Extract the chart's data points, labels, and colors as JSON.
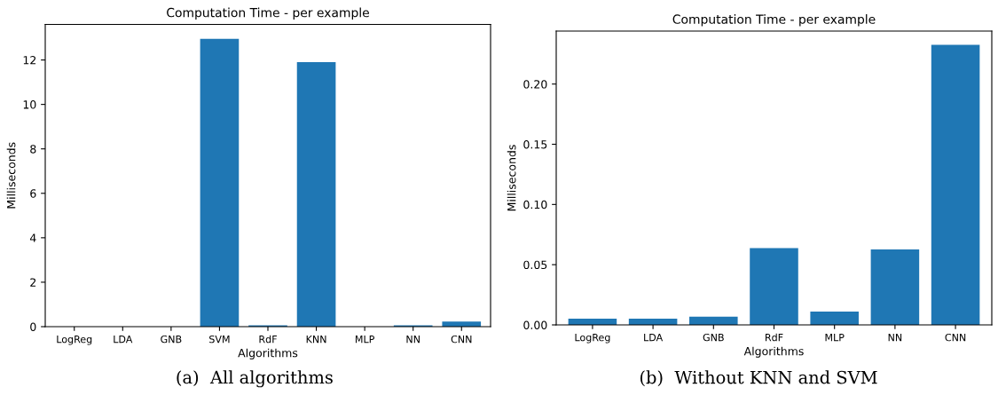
{
  "chart_data": [
    {
      "type": "bar",
      "title": "Computation Time - per example",
      "xlabel": "Algorithms",
      "ylabel": "Milliseconds",
      "categories": [
        "LogReg",
        "LDA",
        "GNB",
        "SVM",
        "RdF",
        "KNN",
        "MLP",
        "NN",
        "CNN"
      ],
      "values": [
        null,
        null,
        null,
        12.95,
        0.06,
        11.9,
        null,
        0.06,
        0.23
      ],
      "color": "#1f77b4",
      "ylim": [
        0,
        13.6
      ],
      "yticks": [
        0,
        2,
        4,
        6,
        8,
        10,
        12
      ],
      "grid": false,
      "annotations": [
        "(a)  All algorithms"
      ]
    },
    {
      "type": "bar",
      "title": "Computation Time - per example",
      "xlabel": "Algorithms",
      "ylabel": "Milliseconds",
      "categories": [
        "LogReg",
        "LDA",
        "GNB",
        "RdF",
        "MLP",
        "NN",
        "CNN"
      ],
      "values": [
        0.0052,
        0.0052,
        0.0069,
        0.0638,
        0.011,
        0.0627,
        0.2325
      ],
      "color": "#1f77b4",
      "ylim": [
        0,
        0.244
      ],
      "yticks": [
        {
          "value": 0,
          "label": "0.00"
        },
        {
          "value": 0.05,
          "label": "0.05"
        },
        {
          "value": 0.1,
          "label": "0.10"
        },
        {
          "value": 0.15,
          "label": "0.15"
        },
        {
          "value": 0.2,
          "label": "0.20"
        }
      ],
      "grid": false,
      "annotations": [
        "(b)  Without KNN and SVM"
      ]
    }
  ]
}
